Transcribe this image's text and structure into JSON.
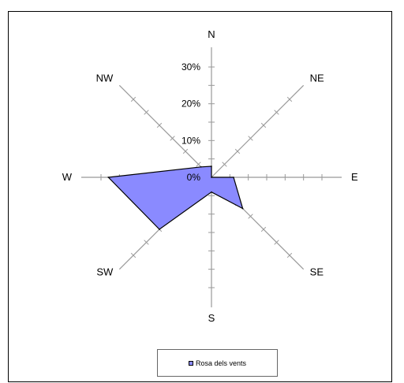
{
  "chart_data": {
    "type": "radar",
    "directions": [
      "N",
      "NE",
      "E",
      "SE",
      "S",
      "SW",
      "W",
      "NW"
    ],
    "tick_labels": [
      "0%",
      "10%",
      "20%",
      "30%"
    ],
    "rlim": [
      0,
      30
    ],
    "tick_step": 10,
    "minor_step": 5,
    "series": [
      {
        "name": "Rosa dels vents",
        "values": [
          3,
          0,
          6,
          12,
          4,
          20,
          28,
          4
        ],
        "fill": "#8a8aff",
        "stroke": "#000000"
      }
    ],
    "legend": {
      "position": "bottom"
    },
    "axis_color": "#999999"
  }
}
